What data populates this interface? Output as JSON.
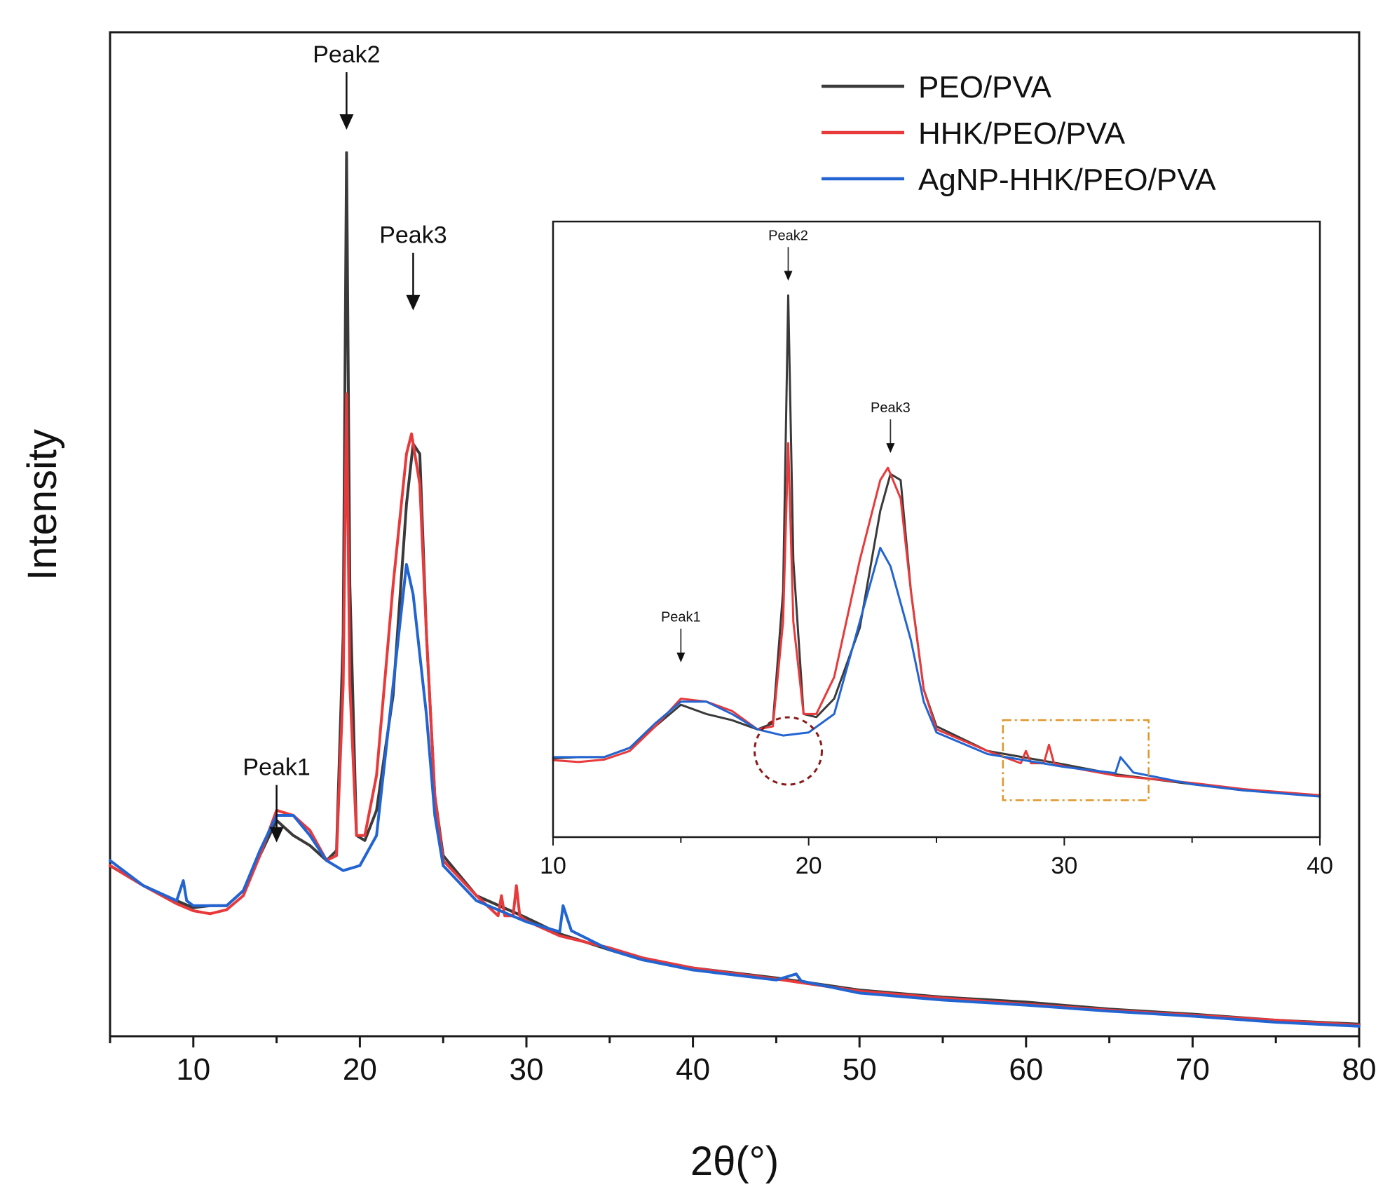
{
  "chart_data": {
    "type": "line",
    "title": "",
    "xlabel": "2θ(°)",
    "ylabel": "Intensity",
    "xlim": [
      5,
      80
    ],
    "ylim": [
      0,
      100
    ],
    "x_ticks": [
      "10",
      "20",
      "30",
      "40",
      "50",
      "60",
      "70",
      "80"
    ],
    "legend": {
      "position": "top-right",
      "entries": [
        "PEO/PVA",
        "HHK/PEO/PVA",
        "AgNP-HHK/PEO/PVA"
      ]
    },
    "annotations": [
      "Peak1",
      "Peak2",
      "Peak3"
    ],
    "peak_positions": [
      15,
      19.2,
      23.2
    ],
    "series": [
      {
        "name": "PEO/PVA",
        "color": "#3a3a3a",
        "points": [
          [
            5,
            17
          ],
          [
            7,
            15
          ],
          [
            9,
            13.5
          ],
          [
            10,
            12.8
          ],
          [
            11,
            13
          ],
          [
            12,
            13
          ],
          [
            13,
            14.5
          ],
          [
            14,
            18
          ],
          [
            15,
            21.5
          ],
          [
            16,
            20
          ],
          [
            17,
            19
          ],
          [
            18,
            17.5
          ],
          [
            18.6,
            18.5
          ],
          [
            19,
            40
          ],
          [
            19.2,
            88
          ],
          [
            19.4,
            45
          ],
          [
            19.8,
            20
          ],
          [
            20.3,
            19.5
          ],
          [
            21,
            22.5
          ],
          [
            22,
            34
          ],
          [
            22.8,
            53
          ],
          [
            23.2,
            59
          ],
          [
            23.6,
            58
          ],
          [
            24,
            40
          ],
          [
            24.5,
            24
          ],
          [
            25,
            18
          ],
          [
            27,
            14
          ],
          [
            30,
            11.8
          ],
          [
            32,
            10.2
          ],
          [
            35,
            8.6
          ],
          [
            37,
            7.6
          ],
          [
            40,
            6.8
          ],
          [
            45,
            5.8
          ],
          [
            50,
            4.6
          ],
          [
            55,
            3.9
          ],
          [
            60,
            3.4
          ],
          [
            65,
            2.7
          ],
          [
            70,
            2.2
          ],
          [
            75,
            1.6
          ],
          [
            80,
            1.2
          ]
        ]
      },
      {
        "name": "HHK/PEO/PVA",
        "color": "#e8393b",
        "points": [
          [
            5,
            17
          ],
          [
            7,
            15
          ],
          [
            9,
            13.2
          ],
          [
            10,
            12.5
          ],
          [
            11,
            12.2
          ],
          [
            12,
            12.6
          ],
          [
            13,
            14
          ],
          [
            14,
            18
          ],
          [
            15,
            22.5
          ],
          [
            16,
            22
          ],
          [
            17,
            20.5
          ],
          [
            18,
            17.5
          ],
          [
            18.6,
            18
          ],
          [
            19,
            35
          ],
          [
            19.2,
            64
          ],
          [
            19.4,
            35
          ],
          [
            19.8,
            20
          ],
          [
            20.3,
            20
          ],
          [
            21,
            26
          ],
          [
            22,
            45
          ],
          [
            22.8,
            58
          ],
          [
            23.1,
            60
          ],
          [
            23.6,
            55
          ],
          [
            24,
            40
          ],
          [
            24.5,
            24
          ],
          [
            25,
            17.5
          ],
          [
            27,
            14
          ],
          [
            28.3,
            12
          ],
          [
            28.5,
            14
          ],
          [
            28.7,
            12
          ],
          [
            29.2,
            12
          ],
          [
            29.4,
            15
          ],
          [
            29.6,
            12
          ],
          [
            30,
            11.5
          ],
          [
            32,
            10
          ],
          [
            35,
            8.8
          ],
          [
            37,
            7.8
          ],
          [
            40,
            6.8
          ],
          [
            45,
            5.7
          ],
          [
            50,
            4.5
          ],
          [
            55,
            3.8
          ],
          [
            60,
            3.2
          ],
          [
            65,
            2.6
          ],
          [
            70,
            2.1
          ],
          [
            75,
            1.6
          ],
          [
            80,
            1.1
          ]
        ]
      },
      {
        "name": "AgNP-HHK/PEO/PVA",
        "color": "#2264d1",
        "points": [
          [
            5,
            17.5
          ],
          [
            7,
            15
          ],
          [
            9,
            13.5
          ],
          [
            9.4,
            15.5
          ],
          [
            9.6,
            13.5
          ],
          [
            10,
            13
          ],
          [
            11,
            13
          ],
          [
            12,
            13
          ],
          [
            13,
            14.5
          ],
          [
            14,
            18.5
          ],
          [
            15,
            22
          ],
          [
            16,
            22
          ],
          [
            17,
            20
          ],
          [
            18,
            17.5
          ],
          [
            19,
            16.5
          ],
          [
            20,
            17
          ],
          [
            21,
            20
          ],
          [
            22,
            35
          ],
          [
            22.8,
            47
          ],
          [
            23.2,
            44
          ],
          [
            24,
            32
          ],
          [
            24.5,
            22
          ],
          [
            25,
            17
          ],
          [
            27,
            13.5
          ],
          [
            30,
            11.4
          ],
          [
            32,
            10.4
          ],
          [
            32.2,
            13
          ],
          [
            32.5,
            11.5
          ],
          [
            32.7,
            10.5
          ],
          [
            35,
            8.6
          ],
          [
            37,
            7.6
          ],
          [
            40,
            6.6
          ],
          [
            45,
            5.6
          ],
          [
            46.2,
            6.2
          ],
          [
            46.5,
            5.5
          ],
          [
            50,
            4.3
          ],
          [
            55,
            3.6
          ],
          [
            60,
            3.1
          ],
          [
            65,
            2.5
          ],
          [
            70,
            2
          ],
          [
            75,
            1.4
          ],
          [
            80,
            1
          ]
        ]
      }
    ],
    "inset": {
      "xlim": [
        10,
        40
      ],
      "ylim": [
        0,
        100
      ],
      "x_ticks": [
        "10",
        "20",
        "30",
        "40"
      ],
      "annotations": [
        "Peak1",
        "Peak2",
        "Peak3"
      ],
      "peak_positions": [
        15,
        19.2,
        23.2
      ],
      "highlight_circle_center": [
        19.2,
        14
      ],
      "highlight_box_x": [
        27.6,
        33.3
      ],
      "highlight_box_y": [
        6,
        19
      ]
    }
  }
}
